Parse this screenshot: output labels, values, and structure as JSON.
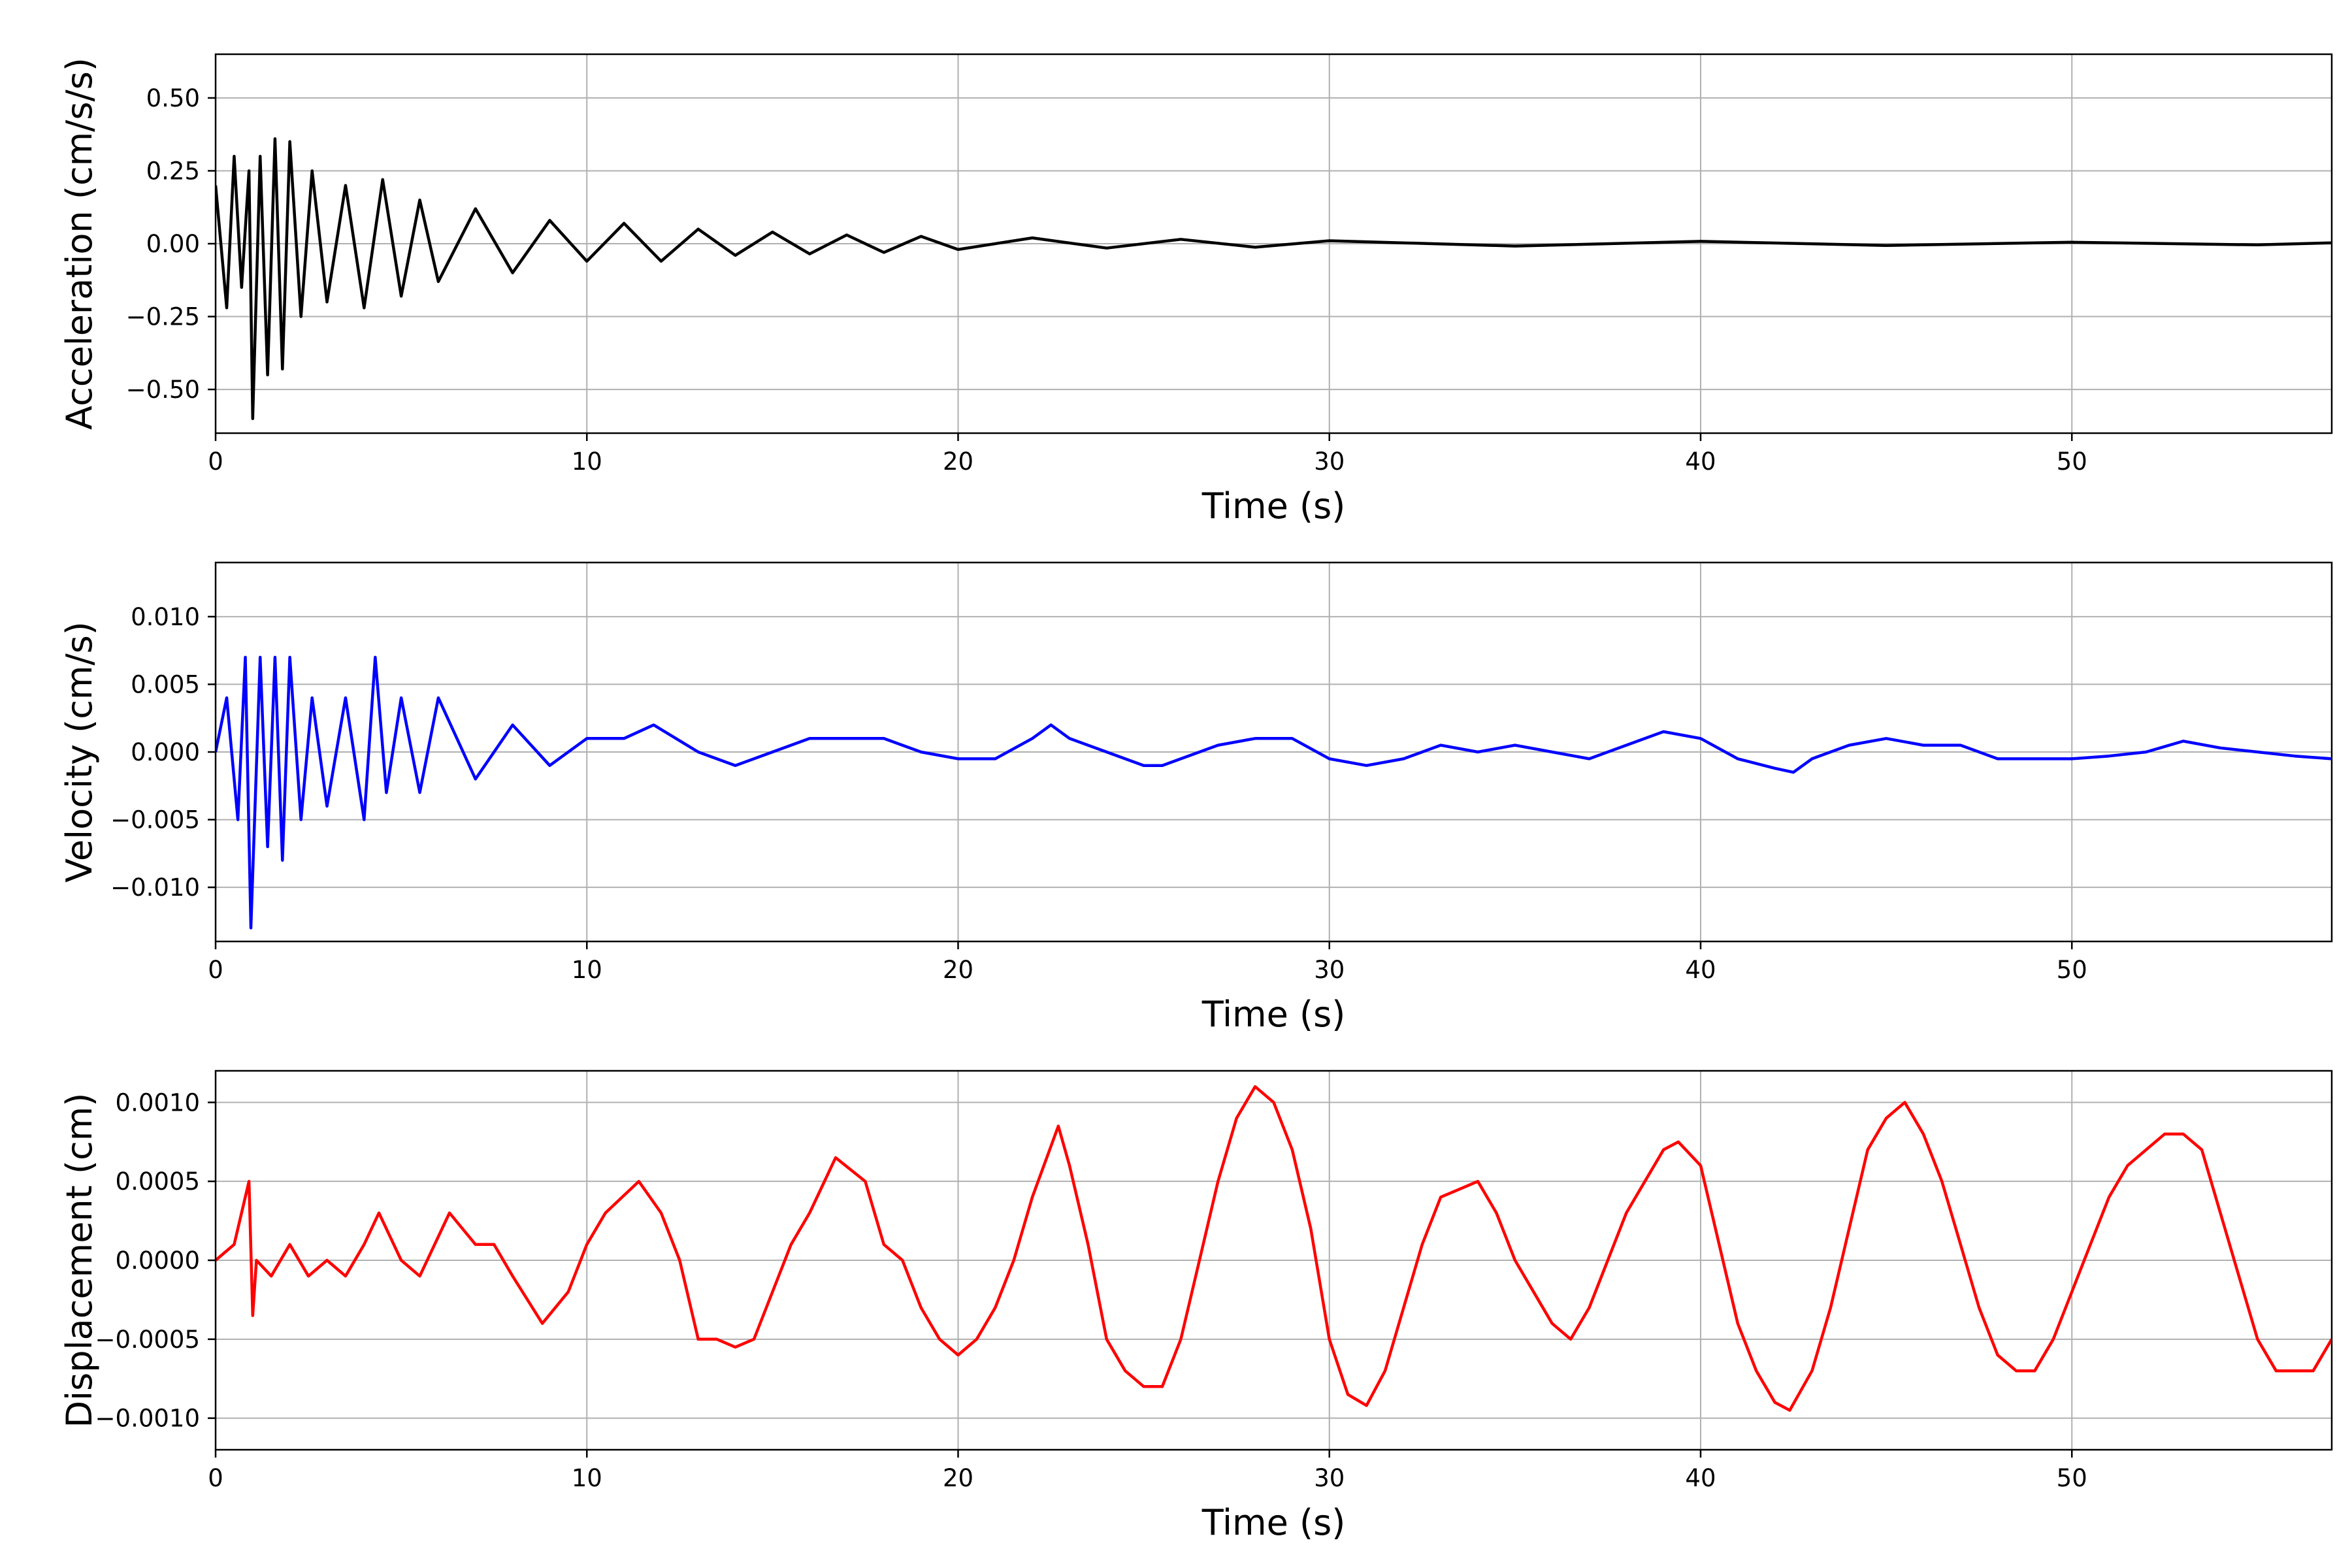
{
  "chart_data": [
    {
      "type": "line",
      "xlabel": "Time (s)",
      "ylabel": "Acceleration (cm/s/s)",
      "xlim": [
        0,
        57
      ],
      "ylim": [
        -0.65,
        0.65
      ],
      "xticks": [
        0,
        10,
        20,
        30,
        40,
        50
      ],
      "xtick_labels": [
        "0",
        "10",
        "20",
        "30",
        "40",
        "50"
      ],
      "yticks": [
        -0.5,
        -0.25,
        0,
        0.25,
        0.5
      ],
      "ytick_labels": [
        "−0.50",
        "−0.25",
        "0.00",
        "0.25",
        "0.50"
      ],
      "grid": true,
      "color": "#000000",
      "series": [
        {
          "x": [
            0,
            0.3,
            0.5,
            0.7,
            0.9,
            1.0,
            1.2,
            1.4,
            1.6,
            1.8,
            2.0,
            2.3,
            2.6,
            3.0,
            3.5,
            4.0,
            4.5,
            5.0,
            5.5,
            6.0,
            7,
            8,
            9,
            10,
            11,
            12,
            13,
            14,
            15,
            16,
            17,
            18,
            19,
            20,
            22,
            24,
            26,
            28,
            30,
            35,
            40,
            45,
            50,
            55,
            57
          ],
          "y": [
            0.2,
            -0.22,
            0.3,
            -0.15,
            0.25,
            -0.6,
            0.3,
            -0.45,
            0.36,
            -0.43,
            0.35,
            -0.25,
            0.25,
            -0.2,
            0.2,
            -0.22,
            0.22,
            -0.18,
            0.15,
            -0.13,
            0.12,
            -0.1,
            0.08,
            -0.06,
            0.07,
            -0.06,
            0.05,
            -0.04,
            0.04,
            -0.035,
            0.03,
            -0.03,
            0.025,
            -0.02,
            0.02,
            -0.015,
            0.015,
            -0.012,
            0.01,
            -0.008,
            0.008,
            -0.006,
            0.005,
            -0.004,
            0.003
          ]
        }
      ]
    },
    {
      "type": "line",
      "xlabel": "Time (s)",
      "ylabel": "Velocity (cm/s)",
      "xlim": [
        0,
        57
      ],
      "ylim": [
        -0.014,
        0.014
      ],
      "xticks": [
        0,
        10,
        20,
        30,
        40,
        50
      ],
      "xtick_labels": [
        "0",
        "10",
        "20",
        "30",
        "40",
        "50"
      ],
      "yticks": [
        -0.01,
        -0.005,
        0,
        0.005,
        0.01
      ],
      "ytick_labels": [
        "−0.010",
        "−0.005",
        "0.000",
        "0.005",
        "0.010"
      ],
      "grid": true,
      "color": "#0000ff",
      "series": [
        {
          "x": [
            0,
            0.3,
            0.6,
            0.8,
            0.95,
            1.2,
            1.4,
            1.6,
            1.8,
            2.0,
            2.3,
            2.6,
            3.0,
            3.5,
            4.0,
            4.3,
            4.6,
            5.0,
            5.5,
            6,
            7,
            8,
            9,
            10,
            11,
            11.8,
            13,
            14,
            15,
            16,
            17,
            18,
            19,
            20,
            21,
            22,
            22.5,
            23,
            24,
            25,
            25.5,
            26,
            26.5,
            27,
            28,
            29,
            30,
            31,
            32,
            33,
            34,
            35,
            36,
            37,
            38,
            39,
            40,
            41,
            42,
            42.5,
            43,
            44,
            45,
            46,
            47,
            48,
            49,
            50,
            51,
            52,
            53,
            54,
            55,
            56,
            57
          ],
          "y": [
            0,
            0.004,
            -0.005,
            0.007,
            -0.013,
            0.007,
            -0.007,
            0.007,
            -0.008,
            0.007,
            -0.005,
            0.004,
            -0.004,
            0.004,
            -0.005,
            0.007,
            -0.003,
            0.004,
            -0.003,
            0.004,
            -0.002,
            0.002,
            -0.001,
            0.001,
            0.001,
            0.002,
            0,
            -0.001,
            0,
            0.001,
            0.001,
            0.001,
            0,
            -0.0005,
            -0.0005,
            0.001,
            0.002,
            0.001,
            0,
            -0.001,
            -0.001,
            -0.0005,
            0,
            0.0005,
            0.001,
            0.001,
            -0.0005,
            -0.001,
            -0.0005,
            0.0005,
            0,
            0.0005,
            0,
            -0.0005,
            0.0005,
            0.0015,
            0.001,
            -0.0005,
            -0.0012,
            -0.0015,
            -0.0005,
            0.0005,
            0.001,
            0.0005,
            0.0005,
            -0.0005,
            -0.0005,
            -0.0005,
            -0.0003,
            0,
            0.0008,
            0.0003,
            0,
            -0.0003,
            -0.0005
          ]
        }
      ]
    },
    {
      "type": "line",
      "xlabel": "Time (s)",
      "ylabel": "Displacement (cm)",
      "xlim": [
        0,
        57
      ],
      "ylim": [
        -0.0012,
        0.0012
      ],
      "xticks": [
        0,
        10,
        20,
        30,
        40,
        50
      ],
      "xtick_labels": [
        "0",
        "10",
        "20",
        "30",
        "40",
        "50"
      ],
      "yticks": [
        -0.001,
        -0.0005,
        0,
        0.0005,
        0.001
      ],
      "ytick_labels": [
        "−0.0010",
        "−0.0005",
        "0.0000",
        "0.0005",
        "0.0010"
      ],
      "grid": true,
      "color": "#ff0000",
      "series": [
        {
          "x": [
            0,
            0.5,
            0.9,
            1.0,
            1.1,
            1.5,
            2,
            2.5,
            3,
            3.5,
            4,
            4.4,
            5,
            5.5,
            6.3,
            7,
            7.5,
            8,
            8.8,
            9.5,
            10,
            10.5,
            11.4,
            12,
            12.5,
            13,
            13.5,
            14,
            14.5,
            15,
            15.5,
            16,
            16.7,
            17.5,
            18,
            18.5,
            19,
            19.5,
            20,
            20.5,
            21,
            21.5,
            22,
            22.7,
            23,
            23.5,
            24,
            24.5,
            25,
            25.5,
            26,
            26.5,
            27,
            27.5,
            28,
            28.5,
            29,
            29.5,
            30,
            30.5,
            31,
            31.5,
            32,
            32.5,
            33,
            33.5,
            34,
            34.5,
            35,
            35.5,
            36,
            36.5,
            37,
            37.5,
            38,
            38.5,
            39,
            39.4,
            40,
            40.5,
            41,
            41.5,
            42,
            42.4,
            43,
            43.5,
            44,
            44.5,
            45,
            45.5,
            46,
            46.5,
            47,
            47.5,
            48,
            48.5,
            49,
            49.5,
            50,
            50.5,
            51,
            51.5,
            52,
            52.5,
            53,
            53.5,
            54,
            54.5,
            55,
            55.5,
            56,
            56.5,
            57
          ],
          "y": [
            0,
            0.0001,
            0.0005,
            -0.00035,
            0,
            -0.0001,
            0.0001,
            -0.0001,
            0,
            -0.0001,
            0.0001,
            0.0003,
            0,
            -0.0001,
            0.0003,
            0.0001,
            0.0001,
            -0.0001,
            -0.0004,
            -0.0002,
            0.0001,
            0.0003,
            0.0005,
            0.0003,
            0,
            -0.0005,
            -0.0005,
            -0.00055,
            -0.0005,
            -0.0002,
            0.0001,
            0.0003,
            0.00065,
            0.0005,
            0.0001,
            0,
            -0.0003,
            -0.0005,
            -0.0006,
            -0.0005,
            -0.0003,
            0,
            0.0004,
            0.00085,
            0.0006,
            0.0001,
            -0.0005,
            -0.0007,
            -0.0008,
            -0.0008,
            -0.0005,
            0,
            0.0005,
            0.0009,
            0.0011,
            0.001,
            0.0007,
            0.0002,
            -0.0005,
            -0.00085,
            -0.00092,
            -0.0007,
            -0.0003,
            0.0001,
            0.0004,
            0.00045,
            0.0005,
            0.0003,
            0,
            -0.0002,
            -0.0004,
            -0.0005,
            -0.0003,
            0,
            0.0003,
            0.0005,
            0.0007,
            0.00075,
            0.0006,
            0.0001,
            -0.0004,
            -0.0007,
            -0.0009,
            -0.00095,
            -0.0007,
            -0.0003,
            0.0002,
            0.0007,
            0.0009,
            0.001,
            0.0008,
            0.0005,
            0.0001,
            -0.0003,
            -0.0006,
            -0.0007,
            -0.0007,
            -0.0005,
            -0.0002,
            0.0001,
            0.0004,
            0.0006,
            0.0007,
            0.0008,
            0.0008,
            0.0007,
            0.0003,
            -0.0001,
            -0.0005,
            -0.0007,
            -0.0007,
            -0.0007,
            -0.0005
          ]
        }
      ]
    }
  ]
}
